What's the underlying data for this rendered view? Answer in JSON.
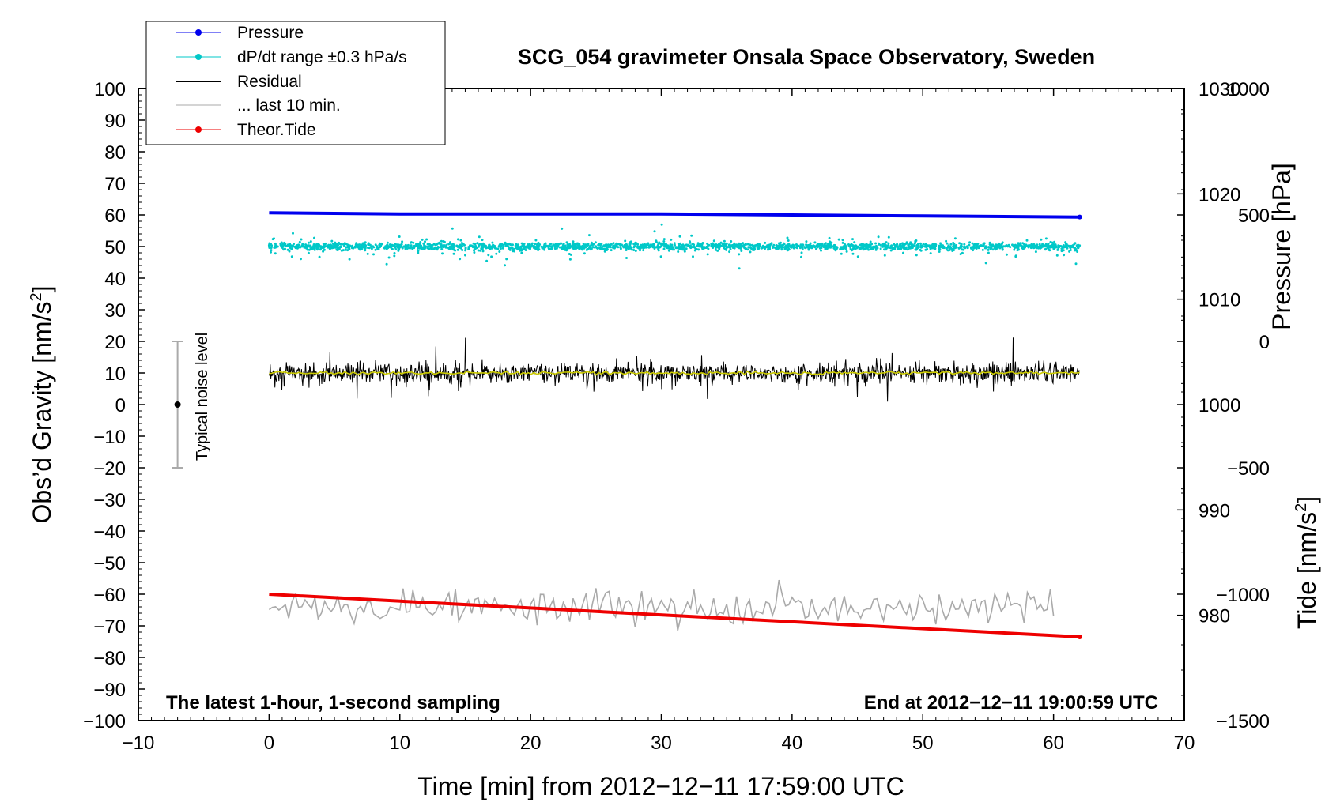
{
  "chart_data": {
    "type": "line",
    "title": "SCG_054 gravimeter Onsala Space Observatory, Sweden",
    "xlabel": "Time [min] from 2012−12−11 17:59:00 UTC",
    "ylabel": "Obs’d Gravity [nm/s²]",
    "ylabel_base": "Obs’d Gravity [nm/s",
    "ylabel_sup": "2",
    "ylabel_tail": "]",
    "xlim": [
      -10,
      70
    ],
    "ylim": [
      -100,
      100
    ],
    "x_ticks": [
      "−10",
      "0",
      "10",
      "20",
      "30",
      "40",
      "50",
      "60",
      "70"
    ],
    "x_tick_values": [
      -10,
      0,
      10,
      20,
      30,
      40,
      50,
      60,
      70
    ],
    "y_ticks": [
      "100",
      "90",
      "80",
      "70",
      "60",
      "50",
      "40",
      "30",
      "20",
      "10",
      "0",
      "−10",
      "−20",
      "−30",
      "−40",
      "−50",
      "−60",
      "−70",
      "−80",
      "−90",
      "−100"
    ],
    "y_tick_values": [
      100,
      90,
      80,
      70,
      60,
      50,
      40,
      30,
      20,
      10,
      0,
      -10,
      -20,
      -30,
      -40,
      -50,
      -60,
      -70,
      -80,
      -90,
      -100
    ],
    "pressure_axis": {
      "label": "Pressure [hPa]",
      "range": [
        970,
        1030
      ],
      "ticks": [
        "1030",
        "1020",
        "1010",
        "1000",
        "990",
        "980"
      ],
      "tick_values": [
        1030,
        1020,
        1010,
        1000,
        990,
        980
      ]
    },
    "tide_axis": {
      "label": "Tide [nm/s²]",
      "label_base": "Tide [nm/s",
      "label_sup": "2",
      "label_tail": "]",
      "range": [
        -1500,
        1000
      ],
      "ticks": [
        "1000",
        "500",
        "0",
        "−500",
        "−1000",
        "−1500"
      ],
      "tick_values": [
        1000,
        500,
        0,
        -500,
        -1000,
        -1500
      ]
    },
    "series": [
      {
        "name": "Pressure",
        "color": "#0000ee",
        "axis": "pressure",
        "x": [
          0,
          10,
          20,
          30,
          40,
          50,
          62
        ],
        "values": [
          1018.2,
          1018.1,
          1018.1,
          1018.1,
          1018.0,
          1017.9,
          1017.8
        ]
      },
      {
        "name": "dP/dt range ±0.3 hPa/s",
        "color": "#00c8c8",
        "axis": "gravity",
        "center": 50,
        "typical_spread": 1.5
      },
      {
        "name": "Residual",
        "color": "#000000",
        "axis": "gravity",
        "center": 10,
        "typical_spread": 5
      },
      {
        "name": "... last 10 min.",
        "color": "#aaaaaa",
        "axis": "gravity",
        "center": -64,
        "typical_spread": 4,
        "x_range": [
          0,
          60
        ]
      },
      {
        "name": "Theor.Tide",
        "color": "#ee0000",
        "axis": "gravity",
        "x": [
          0,
          62
        ],
        "values": [
          -60,
          -73.5
        ]
      }
    ],
    "residual_smooth_color": "#cccc00",
    "noise_bar": {
      "label": "Typical noise level",
      "x": -7,
      "center": 0,
      "low": -20,
      "high": 20
    },
    "annotations": {
      "left": "The latest 1-hour, 1-second sampling",
      "right": "End at 2012−12−11 19:00:59 UTC"
    },
    "legend_position": "top-left"
  }
}
